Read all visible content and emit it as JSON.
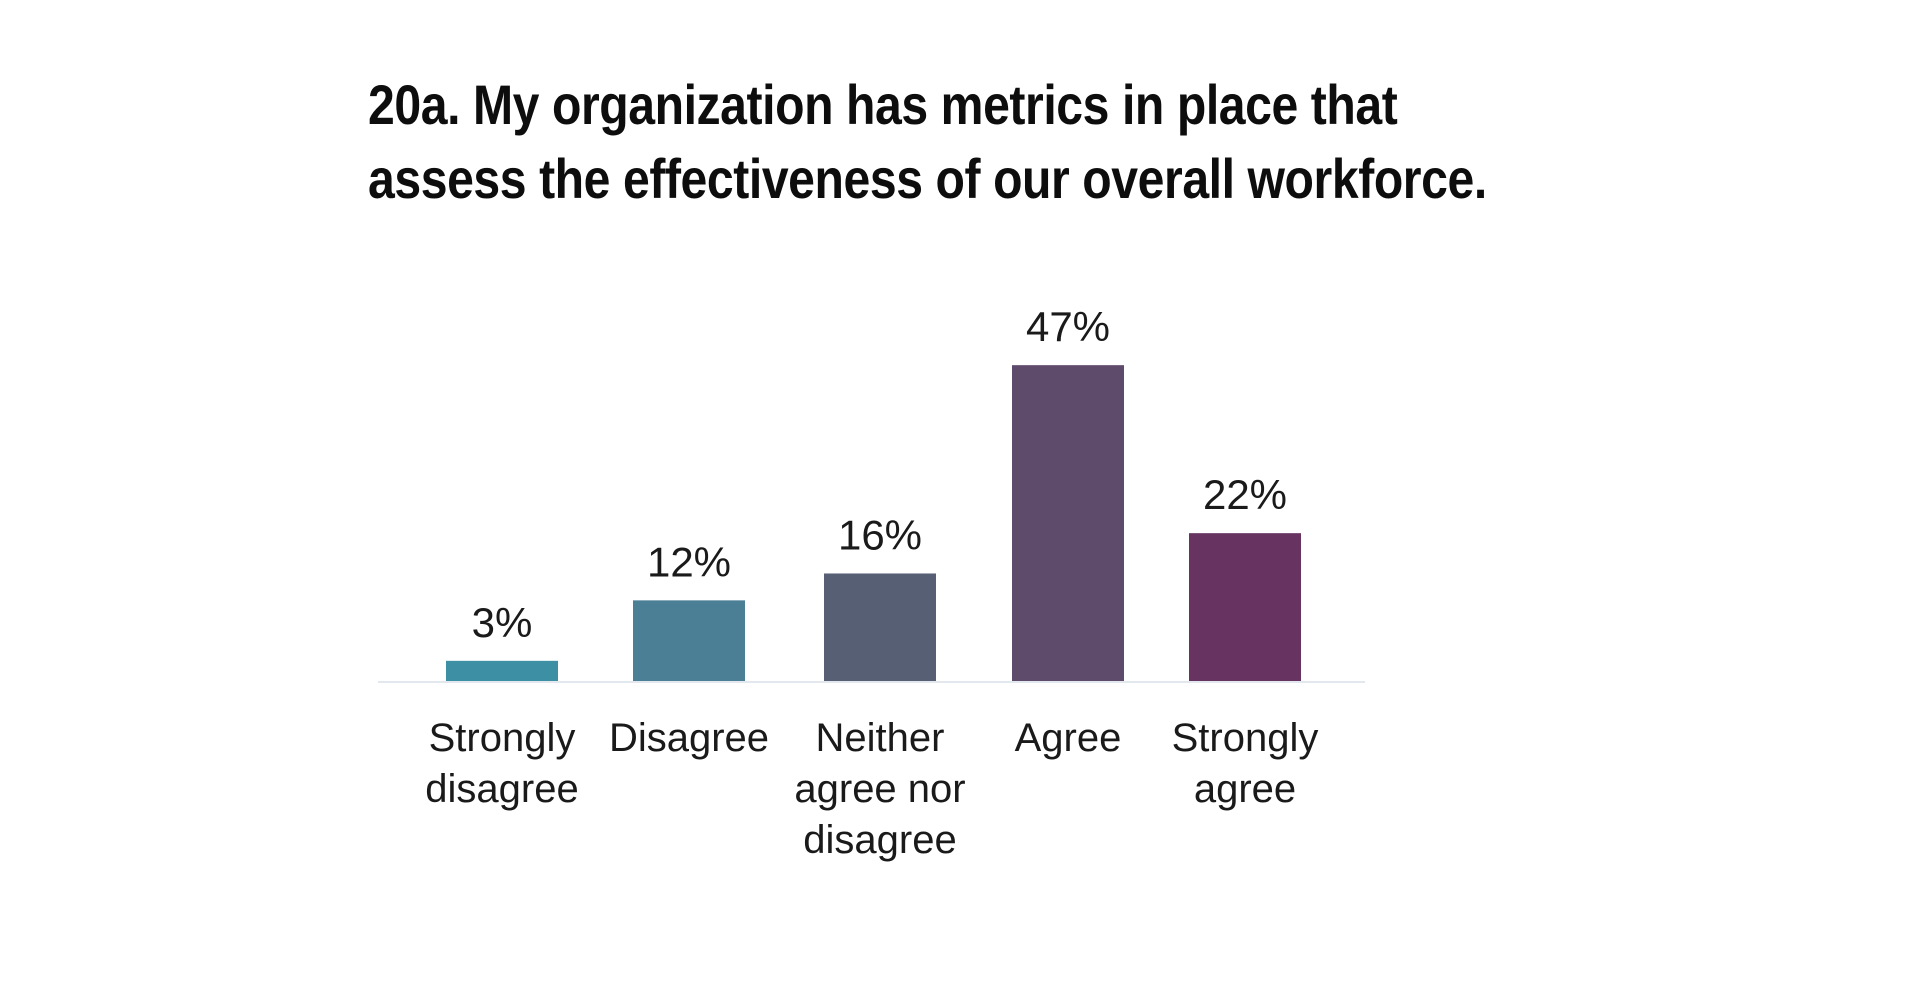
{
  "chart_data": {
    "type": "bar",
    "title_lines": [
      "20a. My organization has metrics in place that",
      "assess the effectiveness of our overall workforce."
    ],
    "categories": [
      [
        "Strongly",
        "disagree"
      ],
      [
        "Disagree"
      ],
      [
        "Neither",
        "agree nor",
        "disagree"
      ],
      [
        "Agree"
      ],
      [
        "Strongly",
        "agree"
      ]
    ],
    "values": [
      3,
      12,
      16,
      47,
      22
    ],
    "value_labels": [
      "3%",
      "12%",
      "16%",
      "47%",
      "22%"
    ],
    "bar_colors": [
      "#3d8fa3",
      "#4a7f95",
      "#575f75",
      "#5e4a6a",
      "#673462"
    ],
    "axis_color": "#e3e8ee",
    "ylim": [
      0,
      50
    ],
    "grid": false,
    "legend": "none"
  }
}
